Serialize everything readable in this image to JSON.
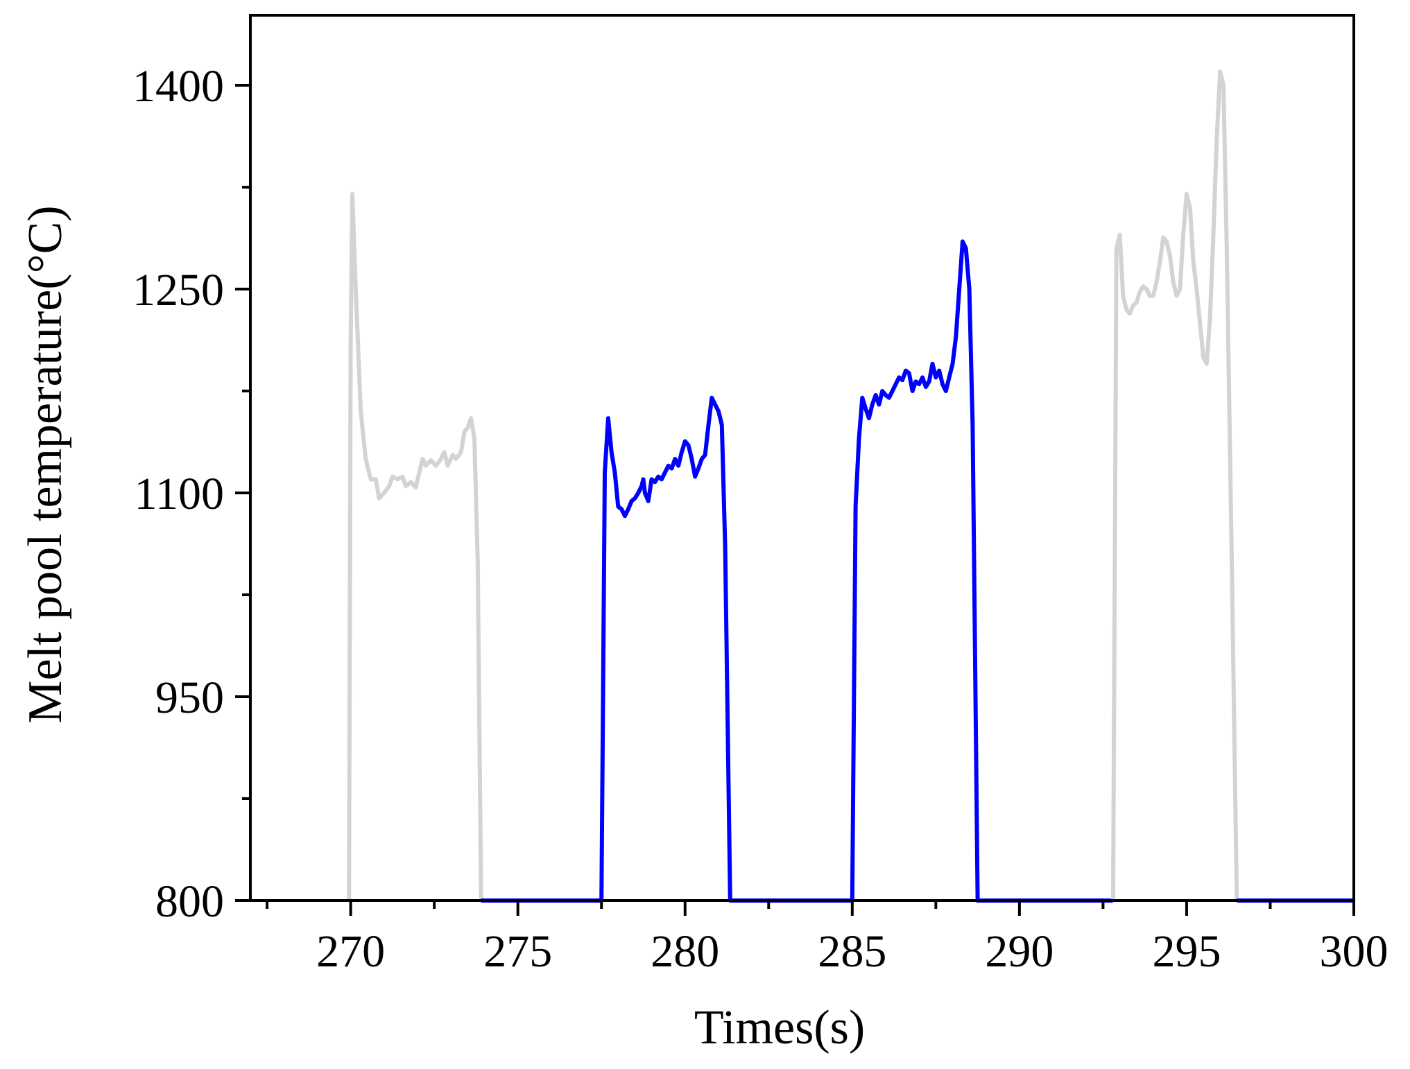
{
  "chart_data": {
    "type": "line",
    "title": "",
    "xlabel": "Times(s)",
    "ylabel": "Melt pool temperature(°C)",
    "xlim": [
      267,
      300
    ],
    "ylim": [
      800,
      1470
    ],
    "x_ticks": [
      270,
      275,
      280,
      285,
      290,
      295,
      300
    ],
    "x_tick_labels": [
      "270",
      "275",
      "280",
      "285",
      "290",
      "295",
      "300"
    ],
    "x_minor_ticks": [
      267.5,
      272.5,
      277.5,
      282.5,
      287.5,
      292.5,
      297.5
    ],
    "y_ticks": [
      800,
      950,
      1100,
      1250,
      1400
    ],
    "y_tick_labels": [
      "800",
      "950",
      "1100",
      "1250",
      "1400"
    ],
    "y_minor_ticks": [
      875,
      1025,
      1175,
      1325
    ],
    "grid": false,
    "legend": "none",
    "colors": {
      "blue": "#0000ff",
      "gray": "#d3d3d3"
    },
    "series": [
      {
        "color": "#d3d3d3",
        "points": [
          [
            269.95,
            800
          ],
          [
            270.0,
            1210
          ],
          [
            270.05,
            1320
          ],
          [
            270.15,
            1250
          ],
          [
            270.3,
            1160
          ],
          [
            270.45,
            1125
          ],
          [
            270.6,
            1110
          ],
          [
            270.75,
            1110
          ],
          [
            270.85,
            1096
          ],
          [
            271.0,
            1100
          ],
          [
            271.15,
            1105
          ],
          [
            271.25,
            1112
          ],
          [
            271.4,
            1110
          ],
          [
            271.55,
            1112
          ],
          [
            271.65,
            1105
          ],
          [
            271.8,
            1108
          ],
          [
            271.95,
            1104
          ],
          [
            272.05,
            1115
          ],
          [
            272.15,
            1125
          ],
          [
            272.25,
            1120
          ],
          [
            272.4,
            1124
          ],
          [
            272.55,
            1120
          ],
          [
            272.7,
            1125
          ],
          [
            272.8,
            1130
          ],
          [
            272.9,
            1120
          ],
          [
            273.05,
            1128
          ],
          [
            273.15,
            1125
          ],
          [
            273.3,
            1130
          ],
          [
            273.4,
            1145
          ],
          [
            273.5,
            1148
          ],
          [
            273.6,
            1155
          ],
          [
            273.7,
            1140
          ],
          [
            273.8,
            1050
          ],
          [
            273.9,
            800
          ]
        ]
      },
      {
        "color": "#0000ff",
        "points": [
          [
            273.9,
            800
          ],
          [
            277.5,
            800
          ],
          [
            277.6,
            1115
          ],
          [
            277.7,
            1155
          ],
          [
            277.8,
            1130
          ],
          [
            277.9,
            1115
          ],
          [
            278.0,
            1090
          ],
          [
            278.1,
            1088
          ],
          [
            278.2,
            1083
          ],
          [
            278.3,
            1088
          ],
          [
            278.4,
            1094
          ],
          [
            278.5,
            1096
          ],
          [
            278.6,
            1100
          ],
          [
            278.7,
            1105
          ],
          [
            278.75,
            1110
          ],
          [
            278.8,
            1100
          ],
          [
            278.9,
            1094
          ],
          [
            279.0,
            1110
          ],
          [
            279.1,
            1108
          ],
          [
            279.2,
            1112
          ],
          [
            279.3,
            1110
          ],
          [
            279.4,
            1115
          ],
          [
            279.5,
            1120
          ],
          [
            279.6,
            1118
          ],
          [
            279.7,
            1125
          ],
          [
            279.8,
            1120
          ],
          [
            279.9,
            1130
          ],
          [
            280.0,
            1138
          ],
          [
            280.1,
            1135
          ],
          [
            280.2,
            1125
          ],
          [
            280.3,
            1112
          ],
          [
            280.4,
            1118
          ],
          [
            280.5,
            1125
          ],
          [
            280.6,
            1128
          ],
          [
            280.7,
            1150
          ],
          [
            280.8,
            1170
          ],
          [
            280.9,
            1165
          ],
          [
            281.0,
            1160
          ],
          [
            281.1,
            1150
          ],
          [
            281.2,
            1060
          ],
          [
            281.35,
            800
          ],
          [
            285.0,
            800
          ],
          [
            285.1,
            1090
          ],
          [
            285.2,
            1140
          ],
          [
            285.3,
            1170
          ],
          [
            285.4,
            1162
          ],
          [
            285.5,
            1155
          ],
          [
            285.6,
            1165
          ],
          [
            285.7,
            1172
          ],
          [
            285.8,
            1165
          ],
          [
            285.9,
            1175
          ],
          [
            286.0,
            1172
          ],
          [
            286.1,
            1170
          ],
          [
            286.2,
            1175
          ],
          [
            286.3,
            1180
          ],
          [
            286.4,
            1185
          ],
          [
            286.5,
            1183
          ],
          [
            286.6,
            1190
          ],
          [
            286.7,
            1188
          ],
          [
            286.8,
            1175
          ],
          [
            286.9,
            1182
          ],
          [
            287.0,
            1180
          ],
          [
            287.1,
            1185
          ],
          [
            287.2,
            1178
          ],
          [
            287.3,
            1182
          ],
          [
            287.4,
            1195
          ],
          [
            287.5,
            1185
          ],
          [
            287.6,
            1190
          ],
          [
            287.7,
            1180
          ],
          [
            287.8,
            1175
          ],
          [
            287.9,
            1185
          ],
          [
            288.0,
            1195
          ],
          [
            288.1,
            1215
          ],
          [
            288.2,
            1250
          ],
          [
            288.3,
            1285
          ],
          [
            288.4,
            1280
          ],
          [
            288.5,
            1250
          ],
          [
            288.6,
            1150
          ],
          [
            288.75,
            800
          ],
          [
            292.8,
            800
          ]
        ]
      },
      {
        "color": "#d3d3d3",
        "points": [
          [
            292.8,
            800
          ],
          [
            292.9,
            1280
          ],
          [
            293.0,
            1290
          ],
          [
            293.1,
            1245
          ],
          [
            293.2,
            1235
          ],
          [
            293.3,
            1232
          ],
          [
            293.4,
            1238
          ],
          [
            293.5,
            1240
          ],
          [
            293.6,
            1248
          ],
          [
            293.7,
            1252
          ],
          [
            293.8,
            1250
          ],
          [
            293.9,
            1245
          ],
          [
            294.0,
            1245
          ],
          [
            294.1,
            1255
          ],
          [
            294.2,
            1270
          ],
          [
            294.3,
            1288
          ],
          [
            294.4,
            1285
          ],
          [
            294.5,
            1275
          ],
          [
            294.6,
            1255
          ],
          [
            294.7,
            1245
          ],
          [
            294.8,
            1250
          ],
          [
            294.9,
            1290
          ],
          [
            295.0,
            1320
          ],
          [
            295.1,
            1310
          ],
          [
            295.2,
            1270
          ],
          [
            295.3,
            1250
          ],
          [
            295.4,
            1225
          ],
          [
            295.5,
            1200
          ],
          [
            295.6,
            1195
          ],
          [
            295.7,
            1230
          ],
          [
            295.8,
            1290
          ],
          [
            295.9,
            1360
          ],
          [
            296.0,
            1410
          ],
          [
            296.1,
            1400
          ],
          [
            296.2,
            1280
          ],
          [
            296.35,
            1050
          ],
          [
            296.5,
            800
          ]
        ]
      },
      {
        "color": "#0000ff",
        "points": [
          [
            296.5,
            800
          ],
          [
            300,
            800
          ]
        ]
      }
    ]
  }
}
